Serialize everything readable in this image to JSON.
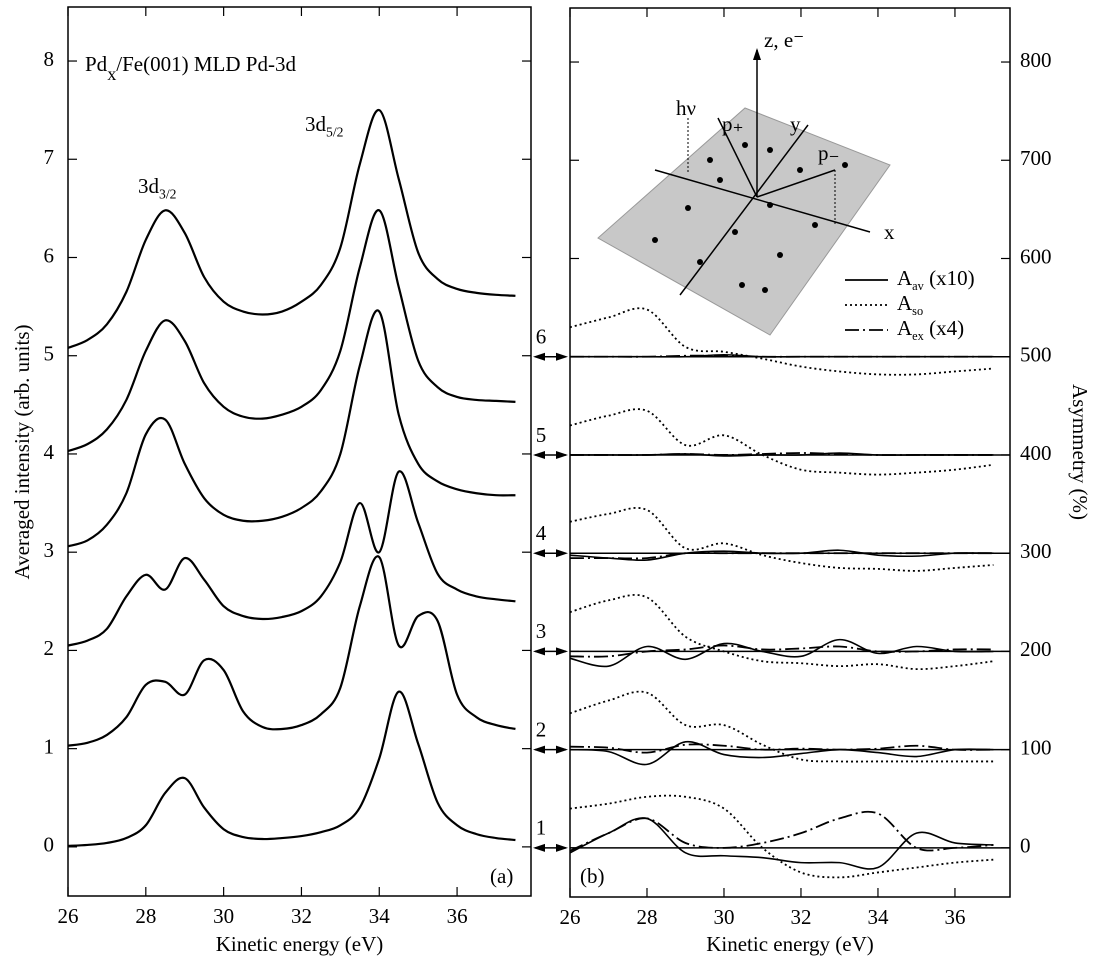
{
  "chart_data": [
    {
      "type": "line",
      "title": {
        "base": "Pd",
        "sub": "x",
        "suffix": "/Fe(001) MLD Pd-3d"
      },
      "panel_label": "(a)",
      "x_label": "Kinetic energy (eV)",
      "y_label": "Averaged intensity (arb. units)",
      "annotations": [
        {
          "base": "3d",
          "sub": "3/2"
        },
        {
          "base": "3d",
          "sub": "5/2"
        }
      ],
      "xlim": [
        26,
        37.9
      ],
      "ylim": [
        -0.5,
        8.55
      ],
      "xticks": [
        26,
        28,
        30,
        32,
        34,
        36
      ],
      "yticks": [
        0,
        1,
        2,
        3,
        4,
        5,
        6,
        7,
        8
      ],
      "x": [
        26,
        26.5,
        27,
        27.5,
        28,
        28.5,
        29,
        29.5,
        30,
        30.5,
        31,
        31.5,
        32,
        32.5,
        33,
        33.5,
        34,
        34.5,
        35,
        35.5,
        36,
        36.5,
        37,
        37.5
      ],
      "series": [
        {
          "color": "#000000",
          "values": [
            0.01,
            0.02,
            0.04,
            0.09,
            0.22,
            0.55,
            0.7,
            0.4,
            0.18,
            0.1,
            0.08,
            0.09,
            0.11,
            0.15,
            0.22,
            0.4,
            0.9,
            1.58,
            1.05,
            0.45,
            0.22,
            0.13,
            0.09,
            0.07
          ]
        },
        {
          "color": "#000000",
          "values": [
            1.03,
            1.06,
            1.14,
            1.32,
            1.65,
            1.68,
            1.55,
            1.9,
            1.8,
            1.38,
            1.22,
            1.2,
            1.24,
            1.35,
            1.62,
            2.45,
            2.95,
            2.05,
            2.35,
            2.3,
            1.55,
            1.32,
            1.24,
            1.2
          ]
        },
        {
          "color": "#000000",
          "values": [
            2.05,
            2.1,
            2.22,
            2.55,
            2.77,
            2.62,
            2.94,
            2.72,
            2.45,
            2.35,
            2.32,
            2.34,
            2.4,
            2.55,
            2.9,
            3.5,
            3.0,
            3.82,
            3.3,
            2.78,
            2.62,
            2.55,
            2.52,
            2.5
          ]
        },
        {
          "color": "#000000",
          "values": [
            3.06,
            3.12,
            3.28,
            3.6,
            4.2,
            4.35,
            3.9,
            3.55,
            3.38,
            3.32,
            3.32,
            3.36,
            3.45,
            3.62,
            4.0,
            4.9,
            5.45,
            4.4,
            3.9,
            3.72,
            3.64,
            3.6,
            3.58,
            3.58
          ]
        },
        {
          "color": "#000000",
          "values": [
            4.03,
            4.1,
            4.25,
            4.55,
            5.05,
            5.36,
            5.15,
            4.72,
            4.48,
            4.38,
            4.36,
            4.4,
            4.48,
            4.65,
            5.05,
            5.9,
            6.48,
            5.7,
            4.95,
            4.68,
            4.58,
            4.55,
            4.54,
            4.53
          ]
        },
        {
          "color": "#000000",
          "values": [
            5.08,
            5.16,
            5.32,
            5.65,
            6.18,
            6.48,
            6.25,
            5.8,
            5.55,
            5.45,
            5.42,
            5.45,
            5.55,
            5.72,
            6.1,
            6.95,
            7.5,
            6.8,
            6.05,
            5.78,
            5.68,
            5.64,
            5.62,
            5.61
          ]
        }
      ]
    },
    {
      "type": "line",
      "panel_label": "(b)",
      "x_label": "Kinetic energy (eV)",
      "y2_label": "Asymmetry (%)",
      "xlim": [
        26,
        37.43
      ],
      "y2lim": [
        -50,
        855
      ],
      "xticks": [
        26,
        28,
        30,
        32,
        34,
        36
      ],
      "y2ticks": [
        0,
        100,
        200,
        300,
        400,
        500,
        600,
        700,
        800
      ],
      "offsets": [
        0,
        100,
        200,
        300,
        400,
        500
      ],
      "offset_labels": [
        1,
        2,
        3,
        4,
        5,
        6
      ],
      "inset": {
        "z": "z, e⁻",
        "hv": "hν",
        "p_plus": "p₊",
        "p_minus": "p₋",
        "y": "y",
        "x": "x"
      },
      "x": [
        26,
        27,
        28,
        29,
        30,
        31,
        32,
        33,
        34,
        35,
        36,
        37
      ],
      "series": [
        {
          "name": {
            "base": "A",
            "sub": "av",
            "suffix": " (x10)"
          },
          "style": "solid",
          "color": "#000000",
          "axis": "y2",
          "curves": [
            [
              -5,
              15,
              30,
              -5,
              -8,
              -10,
              -15,
              -15,
              -20,
              15,
              5,
              3
            ],
            [
              100,
              98,
              85,
              108,
              95,
              92,
              96,
              100,
              97,
              93,
              100,
              100
            ],
            [
              193,
              185,
              205,
              192,
              208,
              200,
              195,
              212,
              198,
              205,
              200,
              200
            ],
            [
              298,
              295,
              293,
              300,
              302,
              300,
              300,
              303,
              298,
              297,
              300,
              300
            ],
            [
              400,
              400,
              400,
              401,
              399,
              400,
              400,
              402,
              400,
              400,
              400,
              400
            ],
            [
              500,
              500,
              500,
              500,
              502,
              500,
              500,
              500,
              500,
              500,
              500,
              500
            ]
          ]
        },
        {
          "name": {
            "base": "A",
            "sub": "so",
            "suffix": ""
          },
          "style": "dotted",
          "color": "#000000",
          "axis": "y2",
          "curves": [
            [
              40,
              45,
              52,
              52,
              40,
              0,
              -25,
              -30,
              -25,
              -20,
              -15,
              -12
            ],
            [
              137,
              150,
              158,
              125,
              125,
              105,
              90,
              88,
              88,
              88,
              88,
              88
            ],
            [
              240,
              252,
              255,
              215,
              200,
              190,
              188,
              185,
              187,
              182,
              185,
              190
            ],
            [
              332,
              340,
              344,
              305,
              310,
              298,
              290,
              285,
              284,
              282,
              285,
              288
            ],
            [
              430,
              440,
              445,
              410,
              420,
              400,
              385,
              382,
              380,
              382,
              385,
              390
            ],
            [
              530,
              540,
              548,
              510,
              505,
              498,
              490,
              485,
              482,
              482,
              485,
              488
            ]
          ]
        },
        {
          "name": {
            "base": "A",
            "sub": "ex",
            "suffix": " (x4)"
          },
          "style": "dashdot",
          "color": "#000000",
          "axis": "y2",
          "curves": [
            [
              -3,
              15,
              30,
              5,
              0,
              5,
              15,
              30,
              35,
              0,
              0,
              3
            ],
            [
              103,
              102,
              97,
              105,
              104,
              100,
              101,
              100,
              101,
              104,
              100,
              100
            ],
            [
              195,
              195,
              200,
              202,
              206,
              202,
              203,
              205,
              200,
              200,
              202,
              202
            ],
            [
              295,
              295,
              295,
              300,
              300,
              300,
              300,
              300,
              300,
              300,
              300,
              300
            ],
            [
              400,
              400,
              400,
              401,
              400,
              401,
              402,
              401,
              400,
              400,
              400,
              400
            ],
            [
              500,
              500,
              500,
              501,
              501,
              500,
              500,
              500,
              500,
              500,
              500,
              500
            ]
          ]
        }
      ]
    }
  ]
}
